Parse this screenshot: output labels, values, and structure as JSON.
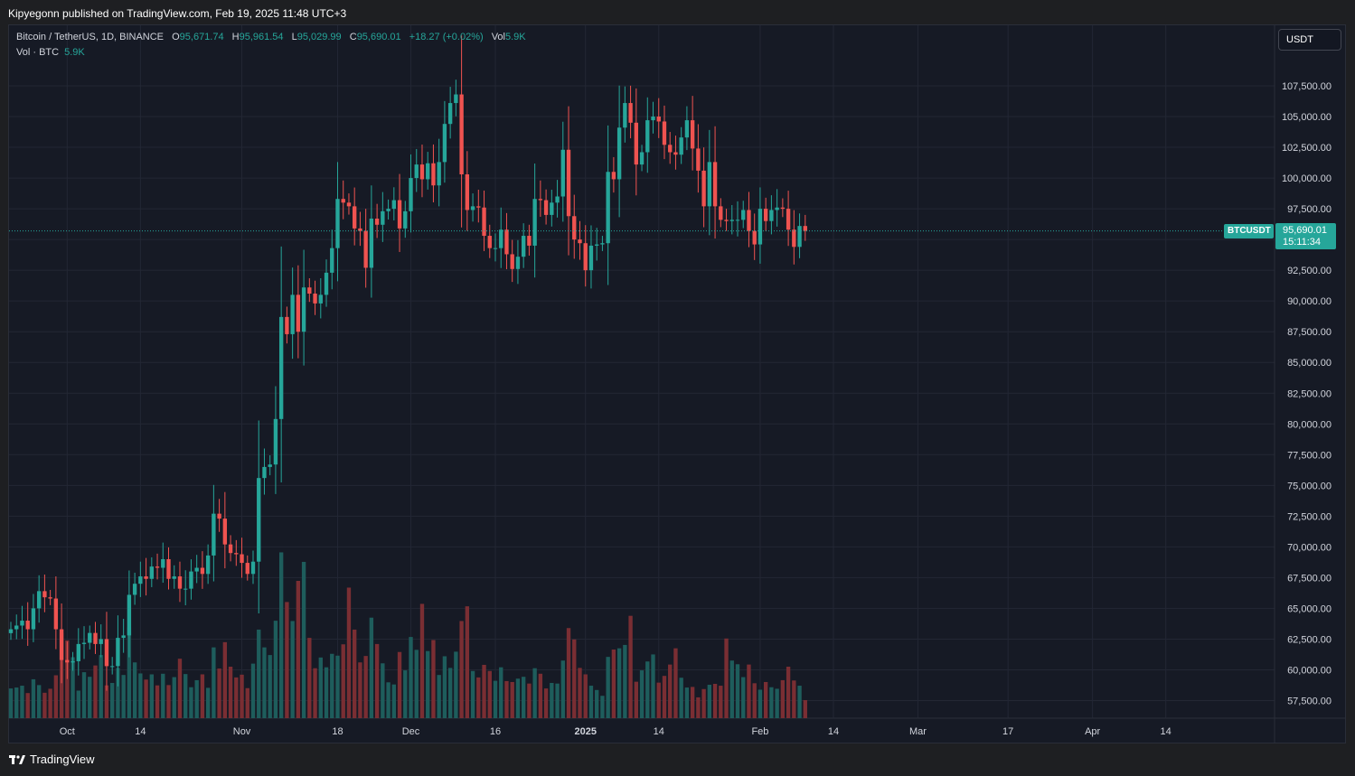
{
  "header": {
    "published": "Kipyegonn published on TradingView.com, Feb 19, 2025 11:48 UTC+3"
  },
  "legend": {
    "symbol": "Bitcoin / TetherUS, 1D, BINANCE",
    "o_label": "O",
    "o": "95,671.74",
    "h_label": "H",
    "h": "95,961.54",
    "l_label": "L",
    "l": "95,029.99",
    "c_label": "C",
    "c": "95,690.01",
    "change": "+18.27 (+0.02%)",
    "vol_label": "Vol",
    "vol": "5.9K"
  },
  "volume_legend": {
    "label": "Vol · BTC",
    "value": "5.9K"
  },
  "currency_button": "USDT",
  "last_price": {
    "ticker": "BTCUSDT",
    "price": "95,690.01",
    "countdown": "15:11:34"
  },
  "footer": {
    "brand": "TradingView"
  },
  "colors": {
    "up": "#26a69a",
    "down": "#ef5350",
    "up_vol": "#1e5d5c",
    "down_vol": "#7a2e33",
    "background": "#161a25"
  },
  "chart_data": {
    "type": "candlestick",
    "ylim": [
      55000,
      110000
    ],
    "y_ticks": [
      57500,
      60000,
      62500,
      65000,
      67500,
      70000,
      72500,
      75000,
      77500,
      80000,
      82500,
      85000,
      87500,
      90000,
      92500,
      95000,
      97500,
      100000,
      102500,
      105000,
      107500
    ],
    "y_tick_labels": [
      "57,500.00",
      "60,000.00",
      "62,500.00",
      "65,000.00",
      "67,500.00",
      "70,000.00",
      "72,500.00",
      "75,000.00",
      "77,500.00",
      "80,000.00",
      "82,500.00",
      "85,000.00",
      "87,500.00",
      "90,000.00",
      "92,500.00",
      "",
      "97,500.00",
      "100,000.00",
      "102,500.00",
      "105,000.00",
      "107,500.00"
    ],
    "x_tick_labels": [
      {
        "label": "Oct",
        "date": "2024-10-01"
      },
      {
        "label": "14",
        "date": "2024-10-14"
      },
      {
        "label": "Nov",
        "date": "2024-11-01"
      },
      {
        "label": "18",
        "date": "2024-11-18"
      },
      {
        "label": "Dec",
        "date": "2024-12-01"
      },
      {
        "label": "16",
        "date": "2024-12-16"
      },
      {
        "label": "2025",
        "date": "2025-01-01"
      },
      {
        "label": "14",
        "date": "2025-01-14"
      },
      {
        "label": "Feb",
        "date": "2025-02-01"
      },
      {
        "label": "14",
        "date": "2025-02-14"
      },
      {
        "label": "Mar",
        "date": "2025-03-01"
      },
      {
        "label": "17",
        "date": "2025-03-17"
      },
      {
        "label": "Apr",
        "date": "2025-04-01"
      },
      {
        "label": "14",
        "date": "2025-04-14"
      }
    ],
    "first_date": "2024-09-21",
    "last_date": "2025-02-19",
    "x_end_date": "2025-04-24",
    "close": [
      63300,
      63600,
      64000,
      63300,
      65000,
      66400,
      65900,
      65800,
      63300,
      60800,
      60600,
      60700,
      62100,
      62200,
      63000,
      62100,
      62500,
      60300,
      60300,
      62600,
      62800,
      66100,
      67000,
      67600,
      67400,
      68400,
      68300,
      69000,
      67400,
      67600,
      66600,
      66600,
      68000,
      68300,
      67800,
      69300,
      72700,
      72300,
      70200,
      69500,
      69400,
      68700,
      67800,
      68800,
      75600,
      76500,
      76700,
      80400,
      88700,
      87300,
      90500,
      87500,
      91100,
      90600,
      89800,
      90500,
      92300,
      94300,
      98300,
      98000,
      97700,
      95900,
      95700,
      92700,
      96700,
      96200,
      97300,
      97500,
      98200,
      95900,
      97300,
      100000,
      101100,
      99900,
      101200,
      99400,
      101300,
      104400,
      106100,
      106800,
      100300,
      97400,
      97700,
      97600,
      95300,
      94300,
      94300,
      95800,
      93800,
      92600,
      93600,
      95300,
      94500,
      98300,
      98200,
      97000,
      98000,
      98500,
      102300,
      96900,
      95000,
      94700,
      92500,
      94500,
      94600,
      94700,
      100500,
      99900,
      104100,
      106100,
      104500,
      101100,
      102100,
      104700,
      105000,
      104600,
      102700,
      102100,
      101900,
      103300,
      104700,
      102400,
      100600,
      97700,
      101300,
      97700,
      96600,
      96500,
      96600,
      96600,
      97400,
      95700,
      94600,
      97500,
      96500,
      97400,
      97600,
      97500,
      95800,
      94400,
      96100,
      95700
    ],
    "volume": [
      9.7,
      10.0,
      10.6,
      8.2,
      12.7,
      10.8,
      8.3,
      9.6,
      14.0,
      27.8,
      25.4,
      19.9,
      9.0,
      15.0,
      13.5,
      17.2,
      20.6,
      10.7,
      11.5,
      16.4,
      14.1,
      29.6,
      18.2,
      14.6,
      12.6,
      14.3,
      10.7,
      14.5,
      10.8,
      13.4,
      19.4,
      14.4,
      10.1,
      12.4,
      14.3,
      9.9,
      23.1,
      16.2,
      24.8,
      16.8,
      13.3,
      14.2,
      9.8,
      17.8,
      28.9,
      23.1,
      20.6,
      31.8,
      54.1,
      37.9,
      31.7,
      44.8,
      51.0,
      26.2,
      16.3,
      19.8,
      16.6,
      21.0,
      20.4,
      24.1,
      42.6,
      28.9,
      18.2,
      20.3,
      32.8,
      24.2,
      17.9,
      11.7,
      11.0,
      21.6,
      15.6,
      26.5,
      22.3,
      37.3,
      21.9,
      25.5,
      14.1,
      20.2,
      16.4,
      21.7,
      31.7,
      36.5,
      15.4,
      13.3,
      17.4,
      15.4,
      12.2,
      16.6,
      12.1,
      11.8,
      12.9,
      13.5,
      11.3,
      16.3,
      14.5,
      9.7,
      11.5,
      11.3,
      18.8,
      29.4,
      25.7,
      16.4,
      14.3,
      10.6,
      9.2,
      7.3,
      20.0,
      22.4,
      22.8,
      23.9,
      33.4,
      11.9,
      15.6,
      18.5,
      20.8,
      11.6,
      13.8,
      17.5,
      22.8,
      13.2,
      10.0,
      10.2,
      6.8,
      9.5,
      10.9,
      11.2,
      10.6,
      26.0,
      18.8,
      17.6,
      13.4,
      17.5,
      11.4,
      9.3,
      11.8,
      10.1,
      9.6,
      12.4,
      16.8,
      12.3,
      10.6,
      5.9
    ]
  }
}
